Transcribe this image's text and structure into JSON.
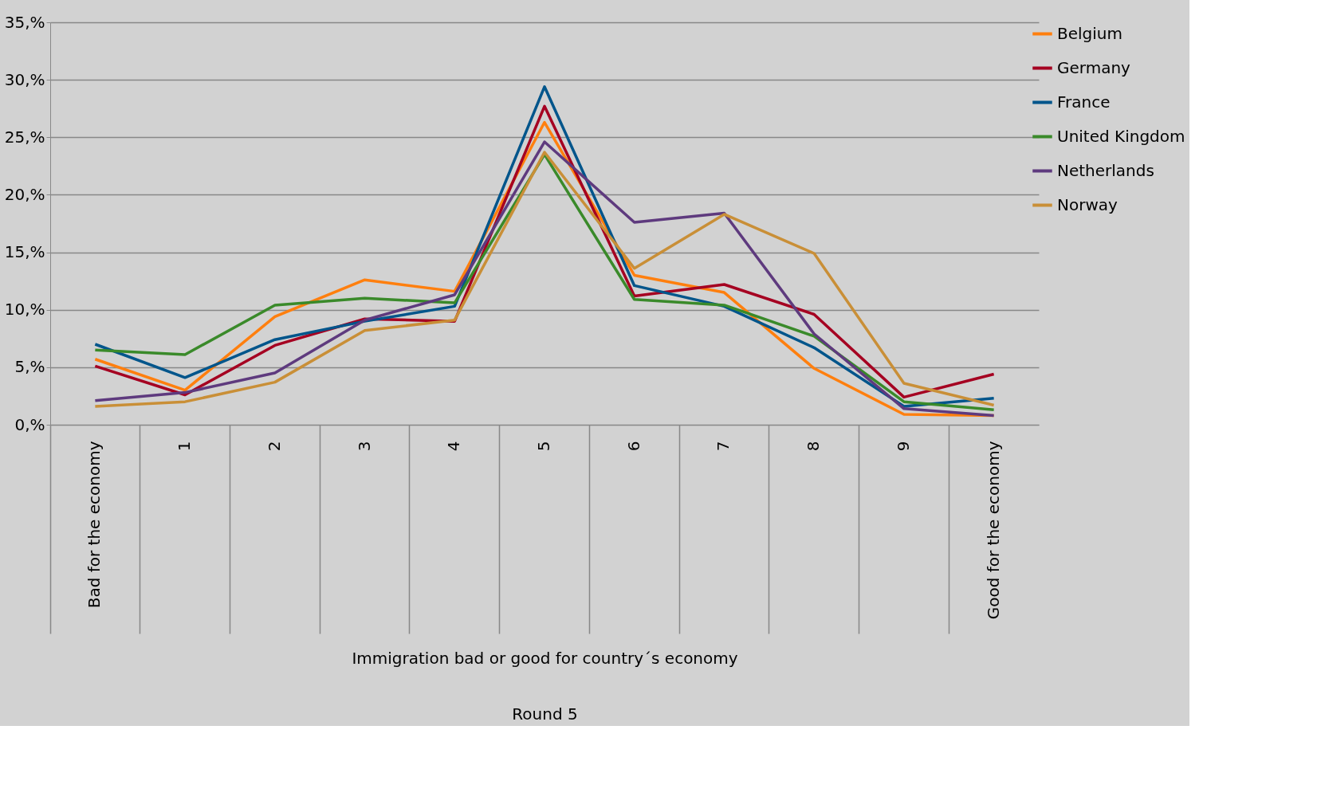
{
  "chart_data": {
    "type": "line",
    "xlabel": "Immigration bad or good for country´s economy",
    "annotations": [
      "Round 5"
    ],
    "categories": [
      "Bad for the economy",
      "1",
      "2",
      "3",
      "4",
      "5",
      "6",
      "7",
      "8",
      "9",
      "Good for the economy"
    ],
    "series": [
      {
        "name": "Belgium",
        "color": "#ff7f0e",
        "values": [
          5.7,
          3.0,
          9.4,
          12.6,
          11.6,
          26.3,
          13.0,
          11.5,
          4.9,
          0.9,
          0.8
        ]
      },
      {
        "name": "Germany",
        "color": "#a50021",
        "values": [
          5.1,
          2.6,
          6.9,
          9.2,
          9.0,
          27.7,
          11.2,
          12.2,
          9.6,
          2.4,
          4.4
        ]
      },
      {
        "name": "France",
        "color": "#00558b",
        "values": [
          7.0,
          4.1,
          7.4,
          9.0,
          10.3,
          29.4,
          12.1,
          10.3,
          6.7,
          1.6,
          2.3
        ]
      },
      {
        "name": "United Kingdom",
        "color": "#3a8a2a",
        "values": [
          6.5,
          6.1,
          10.4,
          11.0,
          10.6,
          23.5,
          10.9,
          10.4,
          7.7,
          2.0,
          1.3
        ]
      },
      {
        "name": "Netherlands",
        "color": "#5e3a7e",
        "values": [
          2.1,
          2.8,
          4.5,
          9.1,
          11.3,
          24.6,
          17.6,
          18.4,
          7.9,
          1.4,
          0.8
        ]
      },
      {
        "name": "Norway",
        "color": "#c98f37",
        "values": [
          1.6,
          2.0,
          3.7,
          8.2,
          9.1,
          23.7,
          13.6,
          18.3,
          14.9,
          3.6,
          1.7
        ]
      }
    ],
    "ylim": [
      0,
      35
    ],
    "yticks": [
      {
        "value": 0,
        "label": "0,%"
      },
      {
        "value": 5,
        "label": "5,%"
      },
      {
        "value": 10,
        "label": "10,%"
      },
      {
        "value": 15,
        "label": "15,%"
      },
      {
        "value": 20,
        "label": "20,%"
      },
      {
        "value": 25,
        "label": "25,%"
      },
      {
        "value": 30,
        "label": "30,%"
      },
      {
        "value": 35,
        "label": "35,%"
      }
    ],
    "grid": "y",
    "legend": "right",
    "marker": "none",
    "line_style": "solid"
  }
}
